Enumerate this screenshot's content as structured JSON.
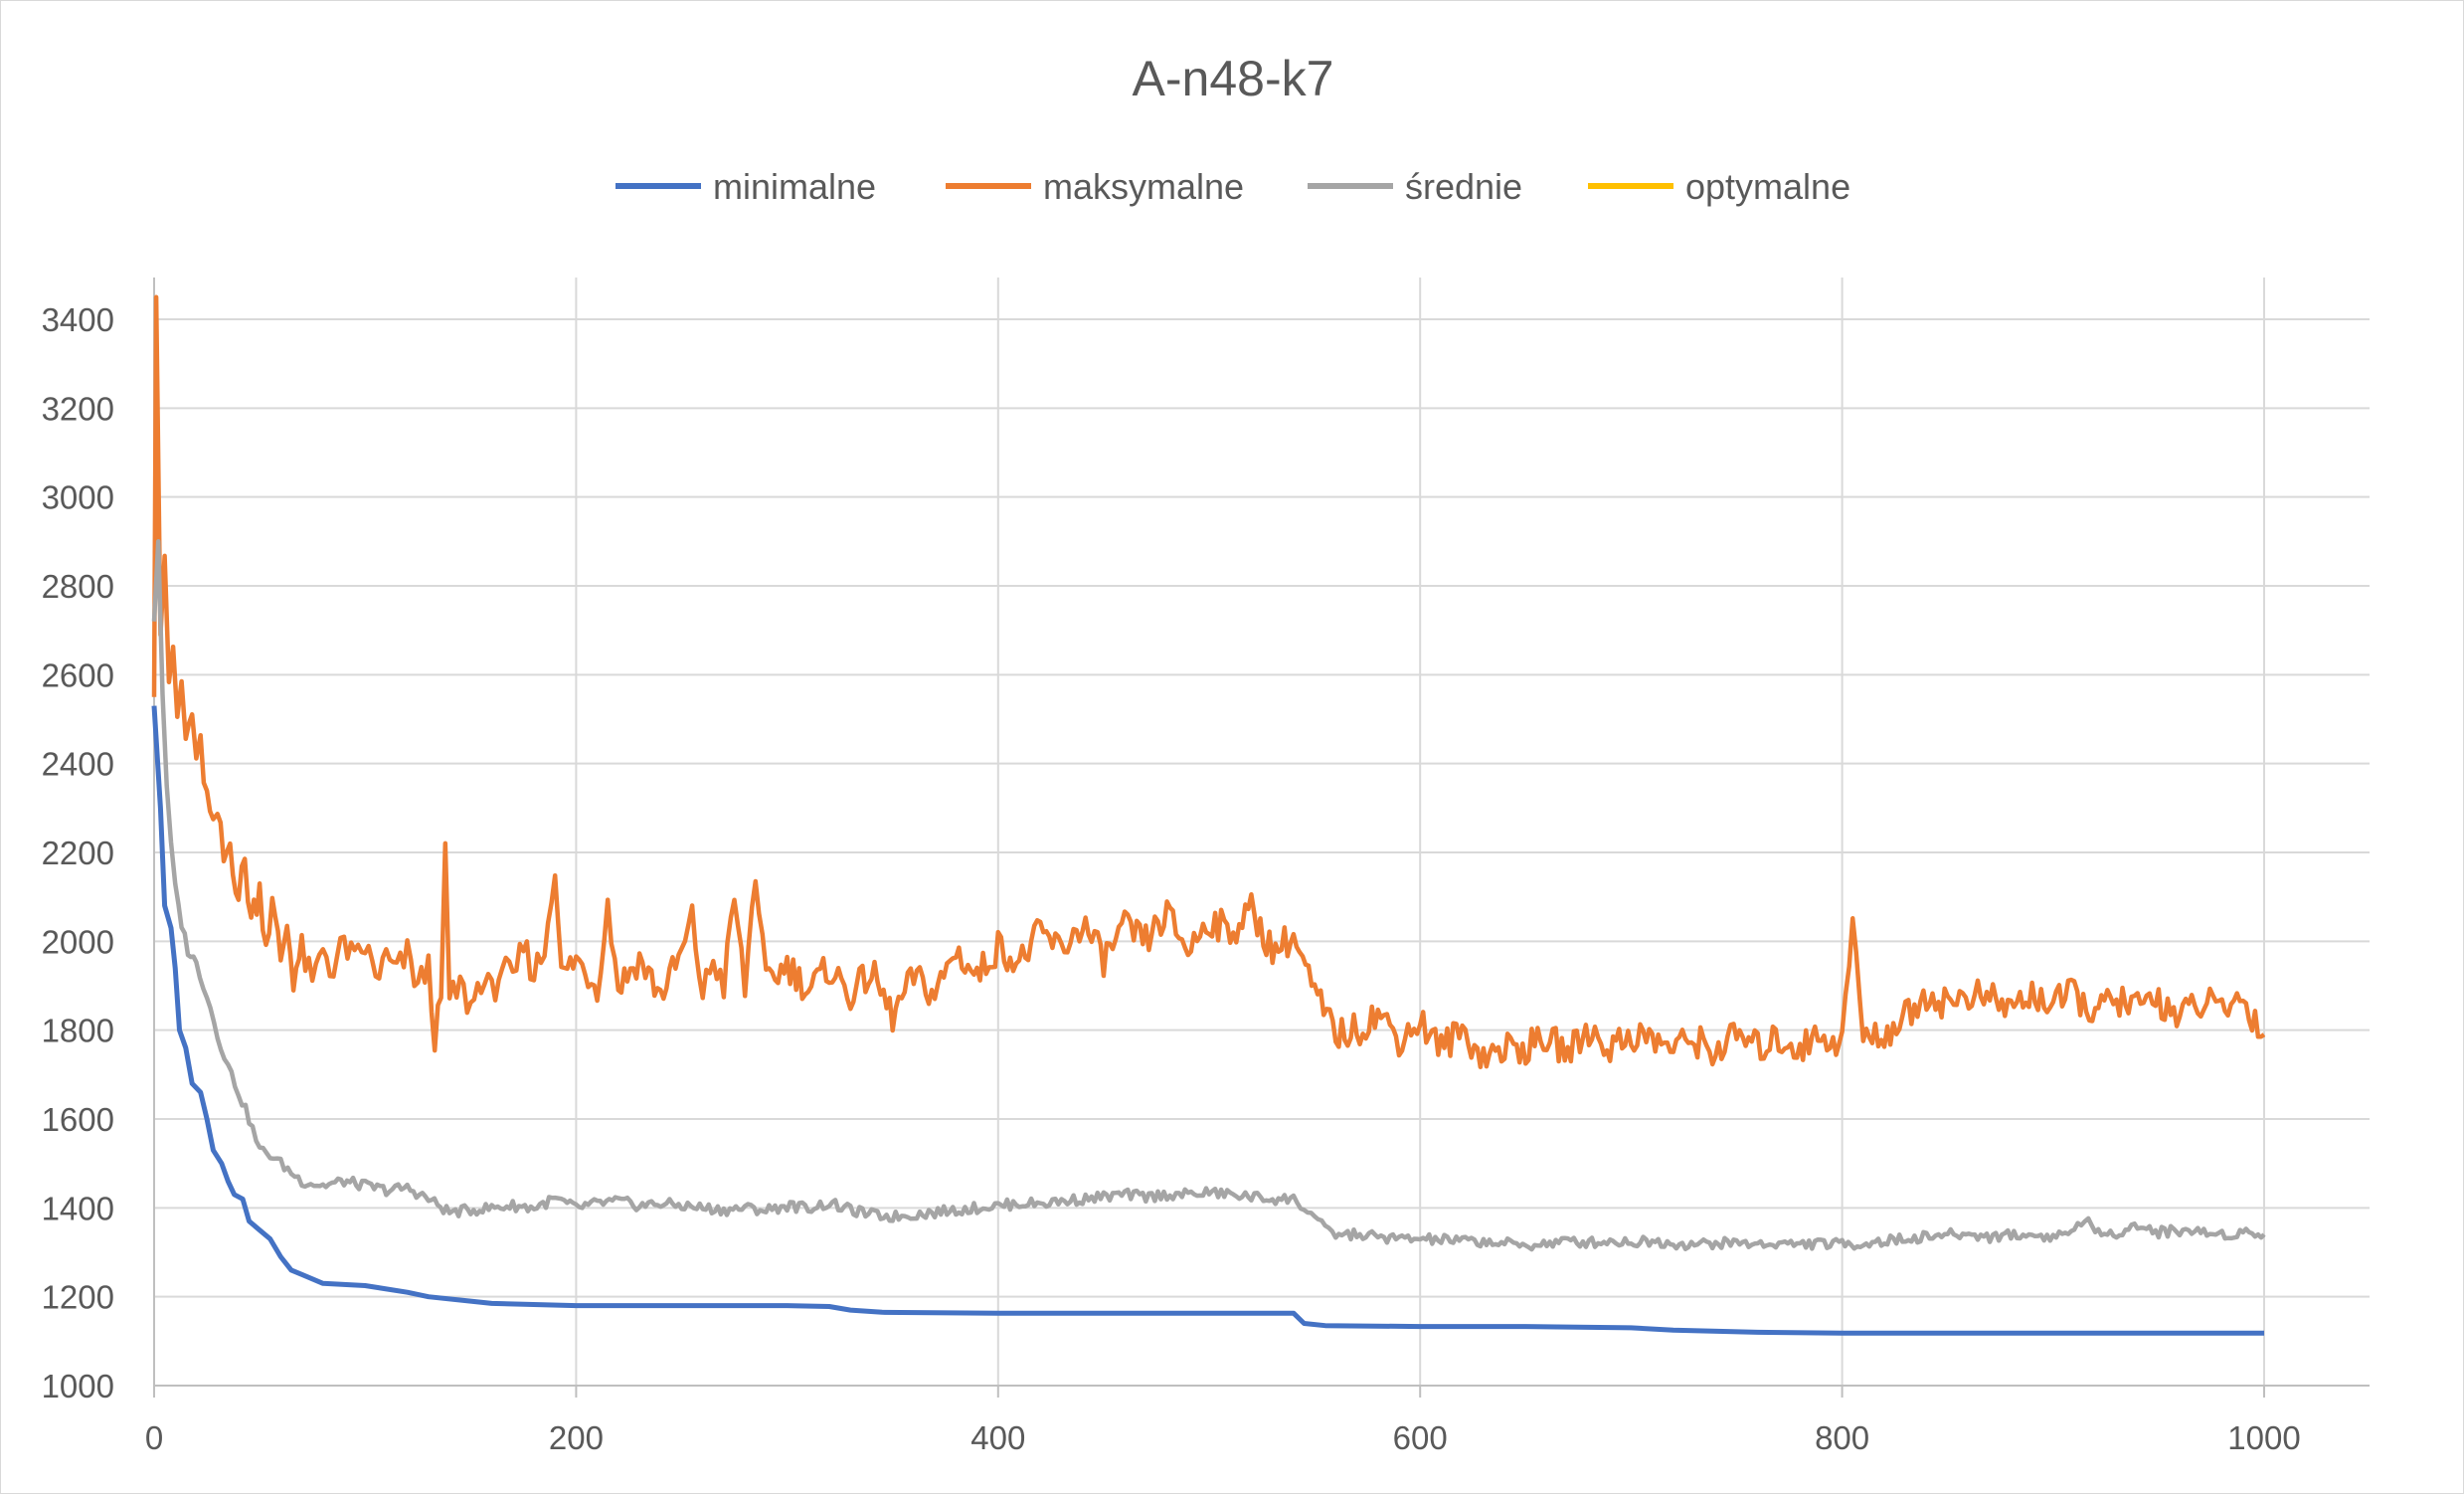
{
  "chart_data": {
    "type": "line",
    "title": "A-n48-k7",
    "xlabel": "",
    "ylabel": "",
    "xlim": [
      0,
      1000
    ],
    "ylim": [
      1000,
      3400
    ],
    "xticks": [
      0,
      200,
      400,
      600,
      800,
      1000
    ],
    "yticks": [
      1000,
      1200,
      1400,
      1600,
      1800,
      2000,
      2200,
      2400,
      2600,
      2800,
      3000,
      3200,
      3400
    ],
    "grid": true,
    "legend_position": "top",
    "series": [
      {
        "name": "minimalne",
        "color": "#4472C4",
        "points": [
          [
            0,
            2530
          ],
          [
            3,
            2300
          ],
          [
            5,
            2080
          ],
          [
            8,
            2030
          ],
          [
            10,
            1940
          ],
          [
            12,
            1800
          ],
          [
            15,
            1760
          ],
          [
            18,
            1680
          ],
          [
            22,
            1660
          ],
          [
            25,
            1600
          ],
          [
            28,
            1530
          ],
          [
            32,
            1500
          ],
          [
            35,
            1460
          ],
          [
            38,
            1430
          ],
          [
            42,
            1420
          ],
          [
            45,
            1370
          ],
          [
            50,
            1350
          ],
          [
            55,
            1330
          ],
          [
            60,
            1290
          ],
          [
            65,
            1260
          ],
          [
            70,
            1250
          ],
          [
            80,
            1230
          ],
          [
            100,
            1225
          ],
          [
            120,
            1210
          ],
          [
            130,
            1200
          ],
          [
            150,
            1190
          ],
          [
            160,
            1185
          ],
          [
            200,
            1180
          ],
          [
            250,
            1180
          ],
          [
            300,
            1180
          ],
          [
            320,
            1178
          ],
          [
            330,
            1170
          ],
          [
            345,
            1165
          ],
          [
            400,
            1163
          ],
          [
            450,
            1163
          ],
          [
            500,
            1163
          ],
          [
            540,
            1163
          ],
          [
            545,
            1140
          ],
          [
            555,
            1135
          ],
          [
            600,
            1133
          ],
          [
            650,
            1133
          ],
          [
            700,
            1130
          ],
          [
            720,
            1125
          ],
          [
            760,
            1120
          ],
          [
            800,
            1118
          ],
          [
            850,
            1118
          ],
          [
            900,
            1118
          ],
          [
            950,
            1118
          ],
          [
            1000,
            1118
          ]
        ]
      },
      {
        "name": "maksymalne",
        "color": "#ED7D31",
        "points": [
          [
            0,
            2550
          ],
          [
            1,
            3450
          ],
          [
            3,
            2700
          ],
          [
            5,
            2880
          ],
          [
            7,
            2550
          ],
          [
            9,
            2660
          ],
          [
            11,
            2500
          ],
          [
            13,
            2580
          ],
          [
            15,
            2450
          ],
          [
            18,
            2520
          ],
          [
            20,
            2380
          ],
          [
            22,
            2440
          ],
          [
            25,
            2320
          ],
          [
            28,
            2240
          ],
          [
            30,
            2290
          ],
          [
            33,
            2180
          ],
          [
            36,
            2220
          ],
          [
            40,
            2100
          ],
          [
            43,
            2180
          ],
          [
            46,
            2050
          ],
          [
            50,
            2120
          ],
          [
            53,
            2000
          ],
          [
            56,
            2080
          ],
          [
            60,
            1960
          ],
          [
            63,
            2040
          ],
          [
            66,
            1920
          ],
          [
            70,
            1980
          ],
          [
            75,
            1900
          ],
          [
            80,
            1990
          ],
          [
            85,
            1930
          ],
          [
            90,
            2000
          ],
          [
            95,
            1950
          ],
          [
            100,
            1990
          ],
          [
            105,
            1920
          ],
          [
            110,
            1960
          ],
          [
            115,
            1930
          ],
          [
            120,
            1970
          ],
          [
            125,
            1900
          ],
          [
            130,
            1940
          ],
          [
            133,
            1790
          ],
          [
            136,
            1850
          ],
          [
            138,
            2220
          ],
          [
            140,
            1860
          ],
          [
            145,
            1900
          ],
          [
            150,
            1850
          ],
          [
            155,
            1920
          ],
          [
            160,
            1880
          ],
          [
            165,
            1950
          ],
          [
            170,
            1900
          ],
          [
            175,
            1990
          ],
          [
            180,
            1930
          ],
          [
            185,
            1980
          ],
          [
            190,
            2180
          ],
          [
            193,
            1920
          ],
          [
            200,
            1960
          ],
          [
            210,
            1900
          ],
          [
            215,
            2080
          ],
          [
            220,
            1900
          ],
          [
            230,
            1960
          ],
          [
            240,
            1880
          ],
          [
            250,
            1970
          ],
          [
            255,
            2050
          ],
          [
            260,
            1880
          ],
          [
            265,
            1960
          ],
          [
            270,
            1900
          ],
          [
            275,
            2100
          ],
          [
            280,
            1890
          ],
          [
            285,
            2160
          ],
          [
            290,
            1900
          ],
          [
            300,
            1950
          ],
          [
            310,
            1890
          ],
          [
            320,
            1940
          ],
          [
            330,
            1880
          ],
          [
            340,
            1930
          ],
          [
            350,
            1830
          ],
          [
            360,
            1920
          ],
          [
            370,
            1880
          ],
          [
            380,
            1980
          ],
          [
            390,
            1920
          ],
          [
            400,
            1990
          ],
          [
            410,
            1950
          ],
          [
            420,
            2020
          ],
          [
            430,
            1980
          ],
          [
            440,
            2040
          ],
          [
            450,
            1960
          ],
          [
            460,
            2030
          ],
          [
            470,
            2000
          ],
          [
            480,
            2060
          ],
          [
            490,
            1980
          ],
          [
            500,
            2050
          ],
          [
            510,
            2020
          ],
          [
            520,
            2070
          ],
          [
            530,
            1980
          ],
          [
            540,
            2010
          ],
          [
            550,
            1880
          ],
          [
            560,
            1790
          ],
          [
            570,
            1800
          ],
          [
            580,
            1840
          ],
          [
            590,
            1780
          ],
          [
            600,
            1820
          ],
          [
            610,
            1760
          ],
          [
            620,
            1800
          ],
          [
            630,
            1740
          ],
          [
            640,
            1760
          ],
          [
            650,
            1760
          ],
          [
            660,
            1780
          ],
          [
            670,
            1750
          ],
          [
            680,
            1800
          ],
          [
            690,
            1760
          ],
          [
            700,
            1790
          ],
          [
            710,
            1780
          ],
          [
            720,
            1760
          ],
          [
            730,
            1780
          ],
          [
            740,
            1750
          ],
          [
            750,
            1790
          ],
          [
            760,
            1760
          ],
          [
            770,
            1780
          ],
          [
            780,
            1760
          ],
          [
            790,
            1790
          ],
          [
            800,
            1770
          ],
          [
            805,
            2050
          ],
          [
            810,
            1780
          ],
          [
            820,
            1790
          ],
          [
            830,
            1830
          ],
          [
            840,
            1880
          ],
          [
            850,
            1860
          ],
          [
            860,
            1880
          ],
          [
            870,
            1870
          ],
          [
            880,
            1850
          ],
          [
            890,
            1880
          ],
          [
            900,
            1860
          ],
          [
            910,
            1880
          ],
          [
            920,
            1840
          ],
          [
            930,
            1870
          ],
          [
            940,
            1850
          ],
          [
            950,
            1870
          ],
          [
            960,
            1830
          ],
          [
            970,
            1860
          ],
          [
            980,
            1850
          ],
          [
            990,
            1870
          ],
          [
            1000,
            1790
          ]
        ]
      },
      {
        "name": "średnie",
        "color": "#A5A5A5",
        "points": [
          [
            0,
            2720
          ],
          [
            2,
            2900
          ],
          [
            4,
            2560
          ],
          [
            6,
            2340
          ],
          [
            8,
            2220
          ],
          [
            10,
            2120
          ],
          [
            13,
            2040
          ],
          [
            16,
            1980
          ],
          [
            20,
            1950
          ],
          [
            25,
            1880
          ],
          [
            30,
            1790
          ],
          [
            35,
            1720
          ],
          [
            40,
            1660
          ],
          [
            45,
            1600
          ],
          [
            50,
            1530
          ],
          [
            55,
            1520
          ],
          [
            60,
            1500
          ],
          [
            65,
            1480
          ],
          [
            70,
            1460
          ],
          [
            80,
            1450
          ],
          [
            90,
            1460
          ],
          [
            100,
            1450
          ],
          [
            110,
            1440
          ],
          [
            120,
            1445
          ],
          [
            130,
            1420
          ],
          [
            140,
            1390
          ],
          [
            150,
            1395
          ],
          [
            160,
            1400
          ],
          [
            170,
            1405
          ],
          [
            180,
            1400
          ],
          [
            190,
            1420
          ],
          [
            200,
            1400
          ],
          [
            210,
            1410
          ],
          [
            220,
            1415
          ],
          [
            230,
            1405
          ],
          [
            240,
            1410
          ],
          [
            250,
            1405
          ],
          [
            260,
            1400
          ],
          [
            270,
            1395
          ],
          [
            280,
            1400
          ],
          [
            290,
            1395
          ],
          [
            300,
            1405
          ],
          [
            310,
            1400
          ],
          [
            320,
            1410
          ],
          [
            330,
            1395
          ],
          [
            340,
            1385
          ],
          [
            350,
            1380
          ],
          [
            360,
            1385
          ],
          [
            370,
            1390
          ],
          [
            380,
            1395
          ],
          [
            390,
            1400
          ],
          [
            400,
            1405
          ],
          [
            410,
            1410
          ],
          [
            420,
            1410
          ],
          [
            430,
            1415
          ],
          [
            440,
            1420
          ],
          [
            450,
            1425
          ],
          [
            460,
            1430
          ],
          [
            470,
            1425
          ],
          [
            480,
            1430
          ],
          [
            490,
            1430
          ],
          [
            500,
            1435
          ],
          [
            510,
            1430
          ],
          [
            520,
            1425
          ],
          [
            530,
            1420
          ],
          [
            540,
            1420
          ],
          [
            545,
            1400
          ],
          [
            550,
            1380
          ],
          [
            555,
            1350
          ],
          [
            560,
            1340
          ],
          [
            570,
            1340
          ],
          [
            580,
            1335
          ],
          [
            590,
            1330
          ],
          [
            600,
            1330
          ],
          [
            610,
            1328
          ],
          [
            620,
            1326
          ],
          [
            630,
            1324
          ],
          [
            640,
            1320
          ],
          [
            650,
            1315
          ],
          [
            660,
            1320
          ],
          [
            670,
            1325
          ],
          [
            680,
            1322
          ],
          [
            690,
            1325
          ],
          [
            700,
            1323
          ],
          [
            710,
            1325
          ],
          [
            720,
            1320
          ],
          [
            730,
            1318
          ],
          [
            740,
            1320
          ],
          [
            750,
            1322
          ],
          [
            760,
            1318
          ],
          [
            770,
            1320
          ],
          [
            780,
            1318
          ],
          [
            790,
            1320
          ],
          [
            800,
            1318
          ],
          [
            810,
            1320
          ],
          [
            820,
            1325
          ],
          [
            830,
            1330
          ],
          [
            840,
            1335
          ],
          [
            850,
            1340
          ],
          [
            860,
            1340
          ],
          [
            870,
            1335
          ],
          [
            880,
            1340
          ],
          [
            890,
            1338
          ],
          [
            900,
            1335
          ],
          [
            910,
            1350
          ],
          [
            915,
            1380
          ],
          [
            920,
            1340
          ],
          [
            930,
            1345
          ],
          [
            940,
            1360
          ],
          [
            950,
            1345
          ],
          [
            960,
            1350
          ],
          [
            970,
            1345
          ],
          [
            980,
            1340
          ],
          [
            990,
            1345
          ],
          [
            1000,
            1340
          ]
        ]
      },
      {
        "name": "optymalne",
        "color": "#FFC000",
        "points": []
      }
    ]
  }
}
